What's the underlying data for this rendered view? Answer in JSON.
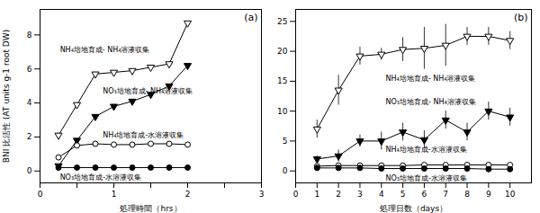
{
  "chart_data": [
    {
      "type": "line",
      "title": "(a)",
      "xlabel": "処理時間（hrs）",
      "ylabel": "BNI 比活性 (AT units g-1 root DW)",
      "xlim": [
        0,
        3
      ],
      "ylim": [
        -0.7,
        9.5
      ],
      "xticks": [
        0,
        {
          "value": 0.5,
          "label": ""
        },
        1,
        {
          "value": 1.5,
          "label": ""
        },
        2,
        {
          "value": 2.5,
          "label": ""
        },
        3
      ],
      "yticks": [
        0,
        2,
        4,
        6,
        8
      ],
      "x": [
        0.25,
        0.5,
        0.75,
        1.0,
        1.25,
        1.5,
        1.75,
        2.0
      ],
      "series": [
        {
          "name": "NH₄培地育成- NH₄溶液収集",
          "color": "black",
          "marker": "triangle-down-open",
          "line_style": "solid",
          "values": [
            2.1,
            3.9,
            5.7,
            5.8,
            5.9,
            6.1,
            6.3,
            8.7
          ]
        },
        {
          "name": "NO₃培地育成- NH₄溶液収集",
          "color": "black",
          "marker": "triangle-down",
          "line_style": "solid",
          "values": [
            0.3,
            1.8,
            3.2,
            3.8,
            4.1,
            4.5,
            5.0,
            6.2
          ]
        },
        {
          "name": "NH₄培地育成-水溶液収集",
          "color": "black",
          "marker": "circle-open",
          "line_style": "solid",
          "values": [
            0.8,
            1.5,
            1.6,
            1.55,
            1.55,
            1.6,
            1.6,
            1.55
          ]
        },
        {
          "name": "NO₃培地育成-水溶液収集",
          "color": "black",
          "marker": "circle",
          "line_style": "solid",
          "values": [
            0.2,
            0.2,
            0.2,
            0.2,
            0.2,
            0.2,
            0.2,
            0.2
          ]
        }
      ],
      "annotations": [
        {
          "text": "NH₄培地育成- NH₄溶液収集",
          "x": 0.27,
          "y": 7.1
        },
        {
          "text": "NO₃培地育成- NH₄溶液収集",
          "x": 0.85,
          "y": 4.7
        },
        {
          "text": "NH₄培地育成-水溶液収集",
          "x": 0.85,
          "y": 2.1
        },
        {
          "text": "NO₃培地育成-水溶液収集",
          "x": 0.27,
          "y": -0.4
        }
      ]
    },
    {
      "type": "line",
      "title": "(b)",
      "xlabel": "処理日数（days）",
      "xlim": [
        0,
        11
      ],
      "ylim": [
        -2,
        27
      ],
      "xticks": [
        0,
        1,
        2,
        3,
        4,
        5,
        6,
        7,
        8,
        9,
        10
      ],
      "yticks": [
        0,
        5,
        10,
        15,
        20,
        25
      ],
      "x": [
        1,
        2,
        3,
        4,
        5,
        6,
        7,
        8,
        9,
        10
      ],
      "series": [
        {
          "name": "NH₄培地育成- NH₄溶液収集",
          "color": "black",
          "marker": "triangle-down-open",
          "line_style": "solid",
          "values": [
            7.0,
            13.5,
            19.2,
            19.5,
            20.3,
            20.5,
            21.0,
            22.5,
            22.5,
            21.8
          ],
          "yerr": [
            1.5,
            2.5,
            1.5,
            1.0,
            2.0,
            3.5,
            3.5,
            1.5,
            1.5,
            1.5
          ]
        },
        {
          "name": "NO₃培地育成- NH₄溶液収集",
          "color": "black",
          "marker": "triangle-down",
          "line_style": "solid",
          "values": [
            2.0,
            2.5,
            5.0,
            5.0,
            6.5,
            5.2,
            8.5,
            6.5,
            10.0,
            9.0
          ],
          "yerr": [
            0.5,
            1.0,
            1.0,
            1.5,
            1.5,
            1.5,
            1.5,
            1.5,
            1.5,
            1.5
          ]
        },
        {
          "name": "NH₄培地育成-水溶液収集",
          "color": "black",
          "marker": "circle-open",
          "line_style": "solid",
          "values": [
            0.8,
            0.9,
            0.9,
            0.9,
            0.9,
            1.0,
            1.0,
            1.0,
            1.0,
            1.0
          ],
          "yerr": [
            0.3,
            0.3,
            0.3,
            0.3,
            0.3,
            0.3,
            0.3,
            0.3,
            0.3,
            0.3
          ]
        },
        {
          "name": "NO₃培地育成-水溶液収集",
          "color": "black",
          "marker": "circle",
          "line_style": "solid",
          "values": [
            0.5,
            0.5,
            0.5,
            0.4,
            0.4,
            0.4,
            0.4,
            0.4,
            0.3,
            0.3
          ],
          "yerr": [
            0.2,
            0.2,
            0.2,
            0.2,
            0.2,
            0.2,
            0.2,
            0.2,
            0.2,
            0.2
          ]
        }
      ],
      "annotations": [
        {
          "text": "NH₄培地育成- NH₄溶液収集",
          "x": 4.2,
          "y": 15.5
        },
        {
          "text": "NO₃培地育成- NH₄溶液収集",
          "x": 4.2,
          "y": 11.5
        },
        {
          "text": "NH₄培地育成-水溶液収集",
          "x": 4.2,
          "y": 3.5
        },
        {
          "text": "NO₃培地育成-水溶液収集",
          "x": 4.2,
          "y": -1.2
        }
      ]
    }
  ]
}
